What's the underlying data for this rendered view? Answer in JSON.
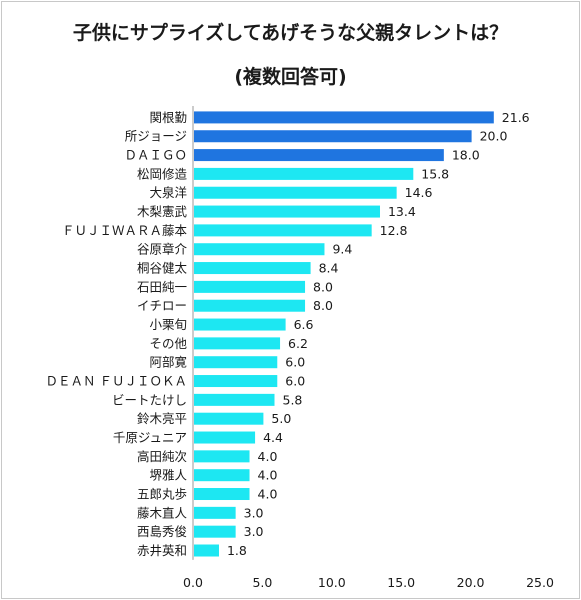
{
  "chart_data": {
    "type": "bar",
    "orientation": "horizontal",
    "title": "子供にサプライズしてあげそうな父親タレントは？",
    "subtitle": "(複数回答可)",
    "categories": [
      "関根勤",
      "所ジョージ",
      "ＤＡＩＧＯ",
      "松岡修造",
      "大泉洋",
      "木梨憲武",
      "ＦＵＪＩＷＡＲＡ藤本",
      "谷原章介",
      "桐谷健太",
      "石田純一",
      "イチロー",
      "小栗旬",
      "その他",
      "阿部寛",
      "ＤＥＡＮ ＦＵＪＩＯＫＡ",
      "ビートたけし",
      "鈴木亮平",
      "千原ジュニア",
      "高田純次",
      "堺雅人",
      "五郎丸歩",
      "藤木直人",
      "西島秀俊",
      "赤井英和"
    ],
    "values": [
      21.6,
      20.0,
      18.0,
      15.8,
      14.6,
      13.4,
      12.8,
      9.4,
      8.4,
      8.0,
      8.0,
      6.6,
      6.2,
      6.0,
      6.0,
      5.8,
      5.0,
      4.4,
      4.0,
      4.0,
      4.0,
      3.0,
      3.0,
      1.8
    ],
    "value_labels": [
      "21.6",
      "20.0",
      "18.0",
      "15.8",
      "14.6",
      "13.4",
      "12.8",
      "9.4",
      "8.4",
      "8.0",
      "8.0",
      "6.6",
      "6.2",
      "6.0",
      "6.0",
      "5.8",
      "5.0",
      "4.4",
      "4.0",
      "4.0",
      "4.0",
      "3.0",
      "3.0",
      "1.8"
    ],
    "highlight_count": 3,
    "xlim": [
      0,
      25
    ],
    "xticks": [
      "0.0",
      "5.0",
      "10.0",
      "15.0",
      "20.0",
      "25.0"
    ],
    "xtick_values": [
      0,
      5,
      10,
      15,
      20,
      25
    ],
    "grid": false,
    "xlabel": "",
    "ylabel": "",
    "colors": {
      "highlight": "#1f75e0",
      "normal": "#1de7f2",
      "text": "#1a1a1a"
    }
  }
}
